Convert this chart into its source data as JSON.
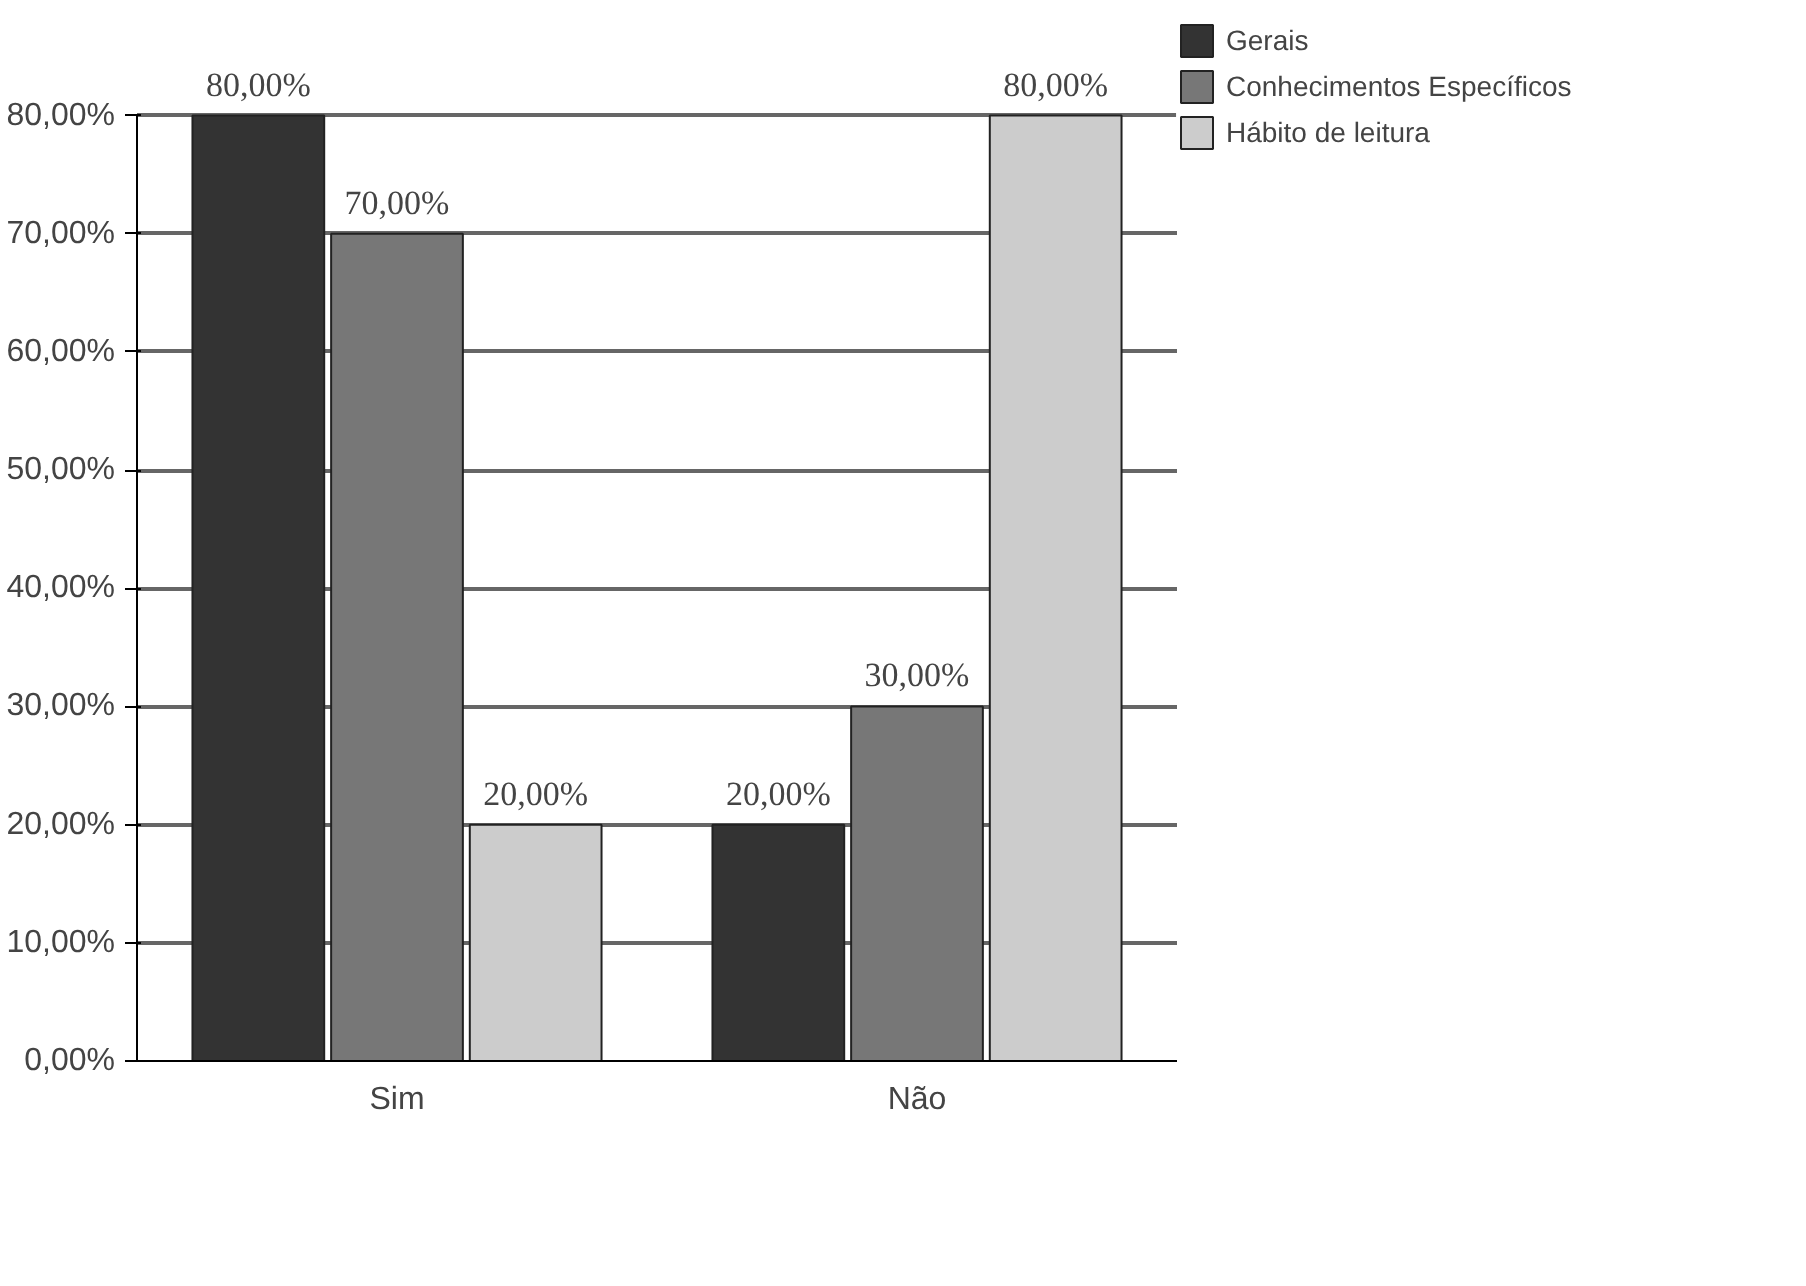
{
  "chart_data": {
    "type": "bar",
    "categories": [
      "Sim",
      "Não"
    ],
    "series": [
      {
        "name": "Gerais",
        "color": "#333333",
        "values": [
          80,
          20
        ],
        "value_labels": [
          "80,00%",
          "20,00%"
        ]
      },
      {
        "name": "Conhecimentos Específicos",
        "color": "#777777",
        "values": [
          70,
          30
        ],
        "value_labels": [
          "70,00%",
          "30,00%"
        ]
      },
      {
        "name": "Hábito de leitura",
        "color": "#cccccc",
        "values": [
          20,
          80
        ],
        "value_labels": [
          "20,00%",
          "80,00%"
        ]
      }
    ],
    "ylim": [
      0,
      80
    ],
    "yticks": [
      {
        "value": 0,
        "label": "0,00%"
      },
      {
        "value": 10,
        "label": "10,00%"
      },
      {
        "value": 20,
        "label": "20,00%"
      },
      {
        "value": 30,
        "label": "30,00%"
      },
      {
        "value": 40,
        "label": "40,00%"
      },
      {
        "value": 50,
        "label": "50,00%"
      },
      {
        "value": 60,
        "label": "60,00%"
      },
      {
        "value": 70,
        "label": "70,00%"
      },
      {
        "value": 80,
        "label": "80,00%"
      }
    ],
    "grid": "y",
    "legend": "right"
  }
}
